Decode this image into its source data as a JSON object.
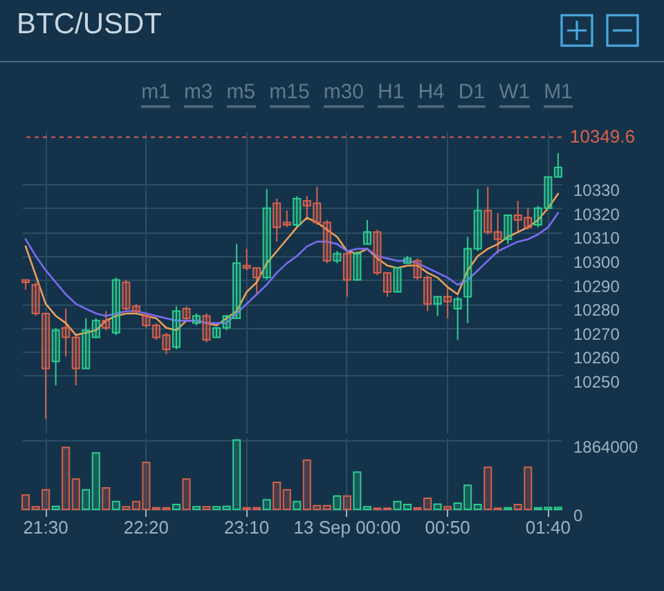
{
  "chart_data": [
    {
      "type": "other",
      "title": "BTC/USDT",
      "annotations": [
        "m1",
        "m3",
        "m5",
        "m15",
        "m30",
        "H1",
        "H4",
        "D1",
        "W1",
        "M1"
      ]
    },
    {
      "type": "candlestick",
      "categories": [
        null,
        null,
        null,
        null,
        null,
        null,
        null,
        null,
        null,
        null,
        null,
        null,
        null,
        null,
        null,
        null,
        null,
        null,
        null,
        null,
        null,
        null,
        null,
        null,
        null,
        null,
        null,
        null,
        null,
        null,
        null,
        null,
        null,
        null,
        null,
        null,
        null,
        null,
        null,
        null,
        null,
        null,
        null,
        null,
        null,
        null,
        null,
        null,
        null,
        null,
        null,
        null,
        null,
        null
      ],
      "ohlc": [
        [
          10290,
          10290,
          10286,
          10289
        ],
        [
          10288,
          10289,
          10275,
          10276
        ],
        [
          10276,
          10276,
          10232,
          10253
        ],
        [
          10256,
          10270,
          10246,
          10269
        ],
        [
          10270,
          10278,
          10258,
          10266
        ],
        [
          10266,
          10267,
          10246,
          10253
        ],
        [
          10253,
          10274,
          10253,
          10269
        ],
        [
          10266,
          10274,
          10266,
          10273
        ],
        [
          10273,
          10277,
          10269,
          10270
        ],
        [
          10268,
          10291,
          10267,
          10290
        ],
        [
          10289,
          10290,
          10277,
          10278
        ],
        [
          10279,
          10280,
          10276,
          10277
        ],
        [
          10275,
          10276,
          10270,
          10271
        ],
        [
          10271,
          10272,
          10265,
          10266
        ],
        [
          10267,
          10268,
          10259,
          10261
        ],
        [
          10262,
          10279,
          10261,
          10277
        ],
        [
          10278,
          10279,
          10273,
          10274
        ],
        [
          10272,
          10276,
          10271,
          10275
        ],
        [
          10275,
          10276,
          10264,
          10265
        ],
        [
          10266,
          10270,
          10266,
          10270
        ],
        [
          10270,
          10275,
          10269,
          10275
        ],
        [
          10274,
          10305,
          10274,
          10297
        ],
        [
          10296,
          10303,
          10294,
          10295
        ],
        [
          10295,
          10295,
          10284,
          10291
        ],
        [
          10291,
          10328,
          10290,
          10320
        ],
        [
          10322,
          10324,
          10306,
          10312
        ],
        [
          10314,
          10319,
          10312,
          10313
        ],
        [
          10313,
          10325,
          10312,
          10324
        ],
        [
          10323,
          10325,
          10315,
          10321
        ],
        [
          10322,
          10329,
          10313,
          10314
        ],
        [
          10314,
          10315,
          10297,
          10298
        ],
        [
          10298,
          10302,
          10297,
          10301
        ],
        [
          10301,
          10302,
          10283,
          10290
        ],
        [
          10290,
          10302,
          10290,
          10301
        ],
        [
          10305,
          10315,
          10305,
          10310
        ],
        [
          10310,
          10311,
          10292,
          10293
        ],
        [
          10293,
          10293,
          10283,
          10285
        ],
        [
          10285,
          10295,
          10285,
          10295
        ],
        [
          10297,
          10300,
          10297,
          10299
        ],
        [
          10298,
          10299,
          10290,
          10291
        ],
        [
          10291,
          10292,
          10277,
          10280
        ],
        [
          10280,
          10283,
          10275,
          10283
        ],
        [
          10283,
          10287,
          10274,
          10281
        ],
        [
          10278,
          10283,
          10265,
          10282
        ],
        [
          10283,
          10308,
          10272,
          10303
        ],
        [
          10303,
          10328,
          10302,
          10319
        ],
        [
          10319,
          10329,
          10309,
          10310
        ],
        [
          10310,
          10318,
          10301,
          10307
        ],
        [
          10307,
          10317,
          10305,
          10317
        ],
        [
          10317,
          10323,
          10310,
          10315
        ],
        [
          10316,
          10320,
          10311,
          10312
        ],
        [
          10313,
          10321,
          10312,
          10320
        ],
        [
          10320,
          10333,
          10320,
          10333
        ],
        [
          10333,
          10343,
          10333,
          10337
        ]
      ],
      "colors": [
        "#d9614c",
        "#d9614c",
        "#d9614c",
        "#2ccf8f",
        "#d9614c",
        "#d9614c",
        "#2ccf8f",
        "#2ccf8f",
        "#d9614c",
        "#2ccf8f",
        "#d9614c",
        "#d9614c",
        "#d9614c",
        "#d9614c",
        "#d9614c",
        "#2ccf8f",
        "#d9614c",
        "#2ccf8f",
        "#d9614c",
        "#2ccf8f",
        "#2ccf8f",
        "#2ccf8f",
        "#d9614c",
        "#d9614c",
        "#2ccf8f",
        "#d9614c",
        "#d9614c",
        "#2ccf8f",
        "#d9614c",
        "#d9614c",
        "#d9614c",
        "#2ccf8f",
        "#d9614c",
        "#2ccf8f",
        "#2ccf8f",
        "#d9614c",
        "#d9614c",
        "#2ccf8f",
        "#2ccf8f",
        "#d9614c",
        "#d9614c",
        "#2ccf8f",
        "#d9614c",
        "#2ccf8f",
        "#2ccf8f",
        "#2ccf8f",
        "#d9614c",
        "#d9614c",
        "#2ccf8f",
        "#d9614c",
        "#d9614c",
        "#2ccf8f",
        "#2ccf8f",
        "#2ccf8f"
      ],
      "series": [
        {
          "type": "line",
          "color": "#f0a05a",
          "values": [
            10304,
            10292,
            10280,
            10275,
            10272,
            10267,
            10268,
            10269,
            10273,
            10275,
            10276,
            10276,
            10275,
            10274,
            10270,
            10269,
            10273,
            10273,
            10272,
            10271,
            10274,
            10277,
            10285,
            10289,
            10297,
            10302,
            10307,
            10312,
            10316,
            10314,
            10311,
            10308,
            10302,
            10301,
            10303,
            10299,
            10296,
            10295,
            10296,
            10296,
            10293,
            10291,
            10287,
            10284,
            10294,
            10300,
            10303,
            10305,
            10308,
            10310,
            10312,
            10315,
            10320,
            10326
          ]
        },
        {
          "type": "line",
          "color": "#7b6cf2",
          "values": [
            10307,
            10300,
            10294,
            10289,
            10284,
            10280,
            10278,
            10276,
            10275,
            10276,
            10277,
            10277,
            10276,
            10275,
            10274,
            10273,
            10273,
            10273,
            10272,
            10272,
            10272,
            10276,
            10280,
            10284,
            10288,
            10293,
            10297,
            10300,
            10304,
            10306,
            10306,
            10305,
            10302,
            10303,
            10303,
            10300,
            10299,
            10298,
            10298,
            10297,
            10295,
            10293,
            10291,
            10288,
            10290,
            10294,
            10298,
            10302,
            10304,
            10306,
            10307,
            10309,
            10312,
            10318
          ]
        }
      ],
      "ylim": [
        10226,
        10352
      ],
      "yticks": [
        10250,
        10260,
        10270,
        10280,
        10290,
        10300,
        10310,
        10320,
        10330
      ],
      "grid": true,
      "tick_labels": "y",
      "ref_lines": [
        {
          "axis": "y",
          "value": 10349.6,
          "label": "10349.6",
          "color": "#d9614c",
          "line_style": "dashed"
        }
      ]
    },
    {
      "type": "bar",
      "categories": [
        null,
        null,
        "21:30",
        null,
        null,
        null,
        null,
        null,
        null,
        null,
        null,
        null,
        "22:20",
        null,
        null,
        null,
        null,
        null,
        null,
        null,
        null,
        null,
        "23:10",
        null,
        null,
        null,
        null,
        null,
        null,
        null,
        null,
        null,
        "13 Sep 00:00",
        null,
        null,
        null,
        null,
        null,
        null,
        null,
        null,
        null,
        "00:50",
        null,
        null,
        null,
        null,
        null,
        null,
        null,
        null,
        null,
        "01:40",
        null
      ],
      "values": [
        390000,
        70000,
        530000,
        80000,
        1680000,
        820000,
        530000,
        1530000,
        580000,
        210000,
        70000,
        210000,
        1270000,
        40000,
        40000,
        130000,
        820000,
        70000,
        70000,
        70000,
        80000,
        1880000,
        40000,
        40000,
        260000,
        730000,
        530000,
        210000,
        1330000,
        100000,
        100000,
        360000,
        360000,
        1010000,
        70000,
        30000,
        30000,
        210000,
        130000,
        40000,
        300000,
        140000,
        70000,
        170000,
        650000,
        130000,
        1140000,
        30000,
        40000,
        130000,
        1140000,
        40000,
        50000,
        50000
      ],
      "colors": [
        "#d9614c",
        "#d9614c",
        "#d9614c",
        "#2ccf8f",
        "#d9614c",
        "#d9614c",
        "#2ccf8f",
        "#2ccf8f",
        "#d9614c",
        "#2ccf8f",
        "#d9614c",
        "#d9614c",
        "#d9614c",
        "#d9614c",
        "#d9614c",
        "#2ccf8f",
        "#d9614c",
        "#2ccf8f",
        "#d9614c",
        "#2ccf8f",
        "#2ccf8f",
        "#2ccf8f",
        "#d9614c",
        "#d9614c",
        "#2ccf8f",
        "#d9614c",
        "#d9614c",
        "#2ccf8f",
        "#d9614c",
        "#d9614c",
        "#d9614c",
        "#2ccf8f",
        "#d9614c",
        "#2ccf8f",
        "#2ccf8f",
        "#d9614c",
        "#d9614c",
        "#2ccf8f",
        "#2ccf8f",
        "#d9614c",
        "#d9614c",
        "#2ccf8f",
        "#d9614c",
        "#2ccf8f",
        "#2ccf8f",
        "#2ccf8f",
        "#d9614c",
        "#d9614c",
        "#2ccf8f",
        "#d9614c",
        "#d9614c",
        "#2ccf8f",
        "#2ccf8f",
        "#2ccf8f"
      ],
      "ylim": [
        0,
        1950000
      ],
      "yticks": [
        0,
        1864000
      ],
      "grid": true
    }
  ]
}
